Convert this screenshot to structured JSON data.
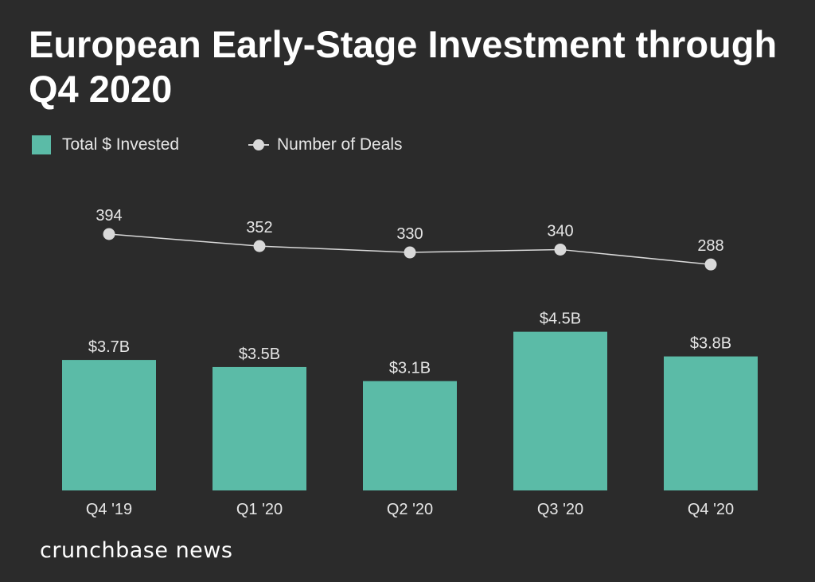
{
  "title": "European Early-Stage Investment through Q4 2020",
  "brand": "crunchbase news",
  "colors": {
    "bar": "#5bbba7",
    "line": "#d9d9d9",
    "text": "#e6e6e6",
    "background": "#2b2b2b"
  },
  "chart_data": {
    "type": "bar",
    "categories": [
      "Q4 '19",
      "Q1 '20",
      "Q2 '20",
      "Q3 '20",
      "Q4 '20"
    ],
    "series": [
      {
        "name": "Total $ Invested",
        "type": "bar",
        "values": [
          3.7,
          3.5,
          3.1,
          4.5,
          3.8
        ],
        "labels": [
          "$3.7B",
          "$3.5B",
          "$3.1B",
          "$4.5B",
          "$3.8B"
        ]
      },
      {
        "name": "Number of Deals",
        "type": "line",
        "values": [
          394,
          352,
          330,
          340,
          288
        ],
        "labels": [
          "394",
          "352",
          "330",
          "340",
          "288"
        ]
      }
    ],
    "legend": "top-left",
    "grid": false
  }
}
